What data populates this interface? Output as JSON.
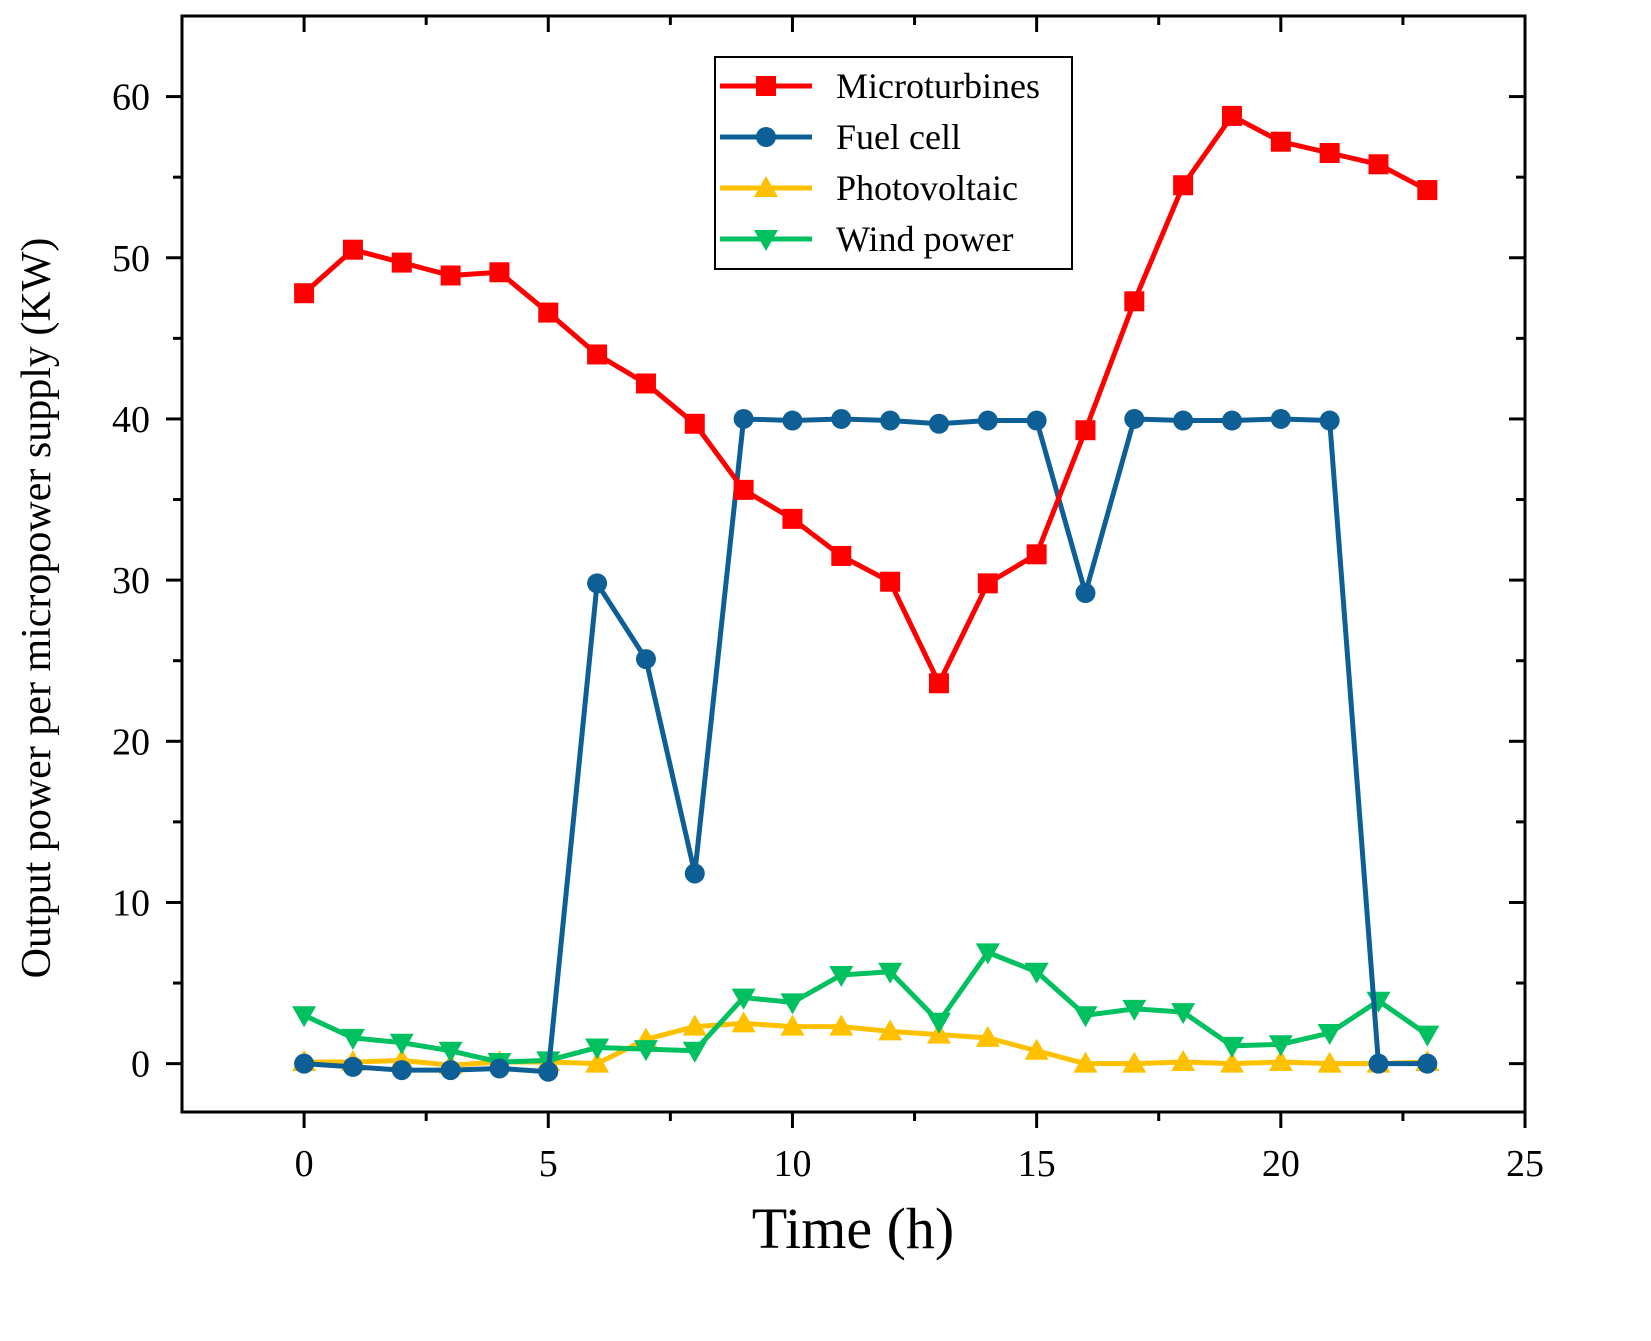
{
  "chart_data": {
    "type": "line",
    "title": "",
    "xlabel": "Time (h)",
    "ylabel": "Output power per micropower supply (KW)",
    "xlim": [
      -2.5,
      25
    ],
    "ylim": [
      -3,
      65
    ],
    "xticks": [
      0,
      5,
      10,
      15,
      20,
      25
    ],
    "yticks": [
      0,
      10,
      20,
      30,
      40,
      50,
      60
    ],
    "x_tick_labels": [
      "0",
      "5",
      "10",
      "15",
      "20",
      "25"
    ],
    "y_tick_labels": [
      "0",
      "10",
      "20",
      "30",
      "40",
      "50",
      "60"
    ],
    "grid": false,
    "legend_position": "top-center",
    "x": [
      0,
      1,
      2,
      3,
      4,
      5,
      6,
      7,
      8,
      9,
      10,
      11,
      12,
      13,
      14,
      15,
      16,
      17,
      18,
      19,
      20,
      21,
      22,
      23
    ],
    "series": [
      {
        "name": "Microturbines",
        "color": "#ff0000",
        "marker": "square",
        "values": [
          47.8,
          50.5,
          49.7,
          48.9,
          49.1,
          46.6,
          44.0,
          42.2,
          39.7,
          35.6,
          33.8,
          31.5,
          29.9,
          23.6,
          29.8,
          31.6,
          39.3,
          47.3,
          54.5,
          58.8,
          57.2,
          56.5,
          55.8,
          54.2
        ]
      },
      {
        "name": "Fuel cell",
        "color": "#0e5f96",
        "marker": "circle",
        "values": [
          0,
          -0.2,
          -0.4,
          -0.4,
          -0.3,
          -0.5,
          29.8,
          25.1,
          11.8,
          40.0,
          39.9,
          40.0,
          39.9,
          39.7,
          39.9,
          39.9,
          29.2,
          40.0,
          39.9,
          39.9,
          40.0,
          39.9,
          0,
          0
        ]
      },
      {
        "name": "Photovoltaic",
        "color": "#ffc000",
        "marker": "triangle-up",
        "values": [
          0.1,
          0.1,
          0.2,
          -0.1,
          0.1,
          0.1,
          0.0,
          1.5,
          2.3,
          2.5,
          2.3,
          2.3,
          2.0,
          1.8,
          1.6,
          0.8,
          0.0,
          0.0,
          0.1,
          0.0,
          0.1,
          0.0,
          0.0,
          0.1
        ]
      },
      {
        "name": "Wind power",
        "color": "#00c060",
        "marker": "triangle-down",
        "values": [
          3.0,
          1.6,
          1.3,
          0.8,
          0.1,
          0.2,
          1.0,
          0.9,
          0.8,
          4.1,
          3.8,
          5.5,
          5.7,
          2.6,
          6.9,
          5.7,
          3.0,
          3.4,
          3.2,
          1.1,
          1.2,
          1.9,
          3.9,
          1.8
        ]
      }
    ]
  }
}
